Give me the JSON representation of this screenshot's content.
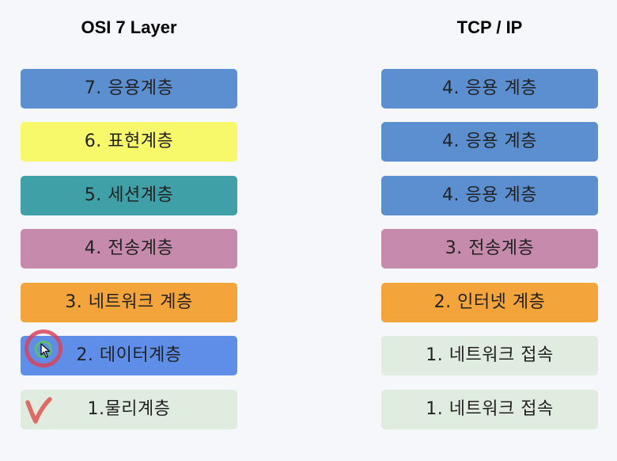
{
  "osi": {
    "title": "OSI 7 Layer",
    "layers": [
      {
        "label": "7. 응용계층",
        "color": "#5b8fd0"
      },
      {
        "label": "6. 표현계층",
        "color": "#f7f96a"
      },
      {
        "label": "5. 세션계층",
        "color": "#3fa0a8"
      },
      {
        "label": "4. 전송계층",
        "color": "#c58aac"
      },
      {
        "label": "3. 네트워크 계층",
        "color": "#f3a43a"
      },
      {
        "label": "2. 데이터계층",
        "color": "#5e8ee8"
      },
      {
        "label": "1.물리계층",
        "color": "#e0ecdf"
      }
    ]
  },
  "tcpip": {
    "title": "TCP / IP",
    "layers": [
      {
        "label": "4. 응용 계층",
        "color": "#5b8fd0"
      },
      {
        "label": "4. 응용 계층",
        "color": "#5b8fd0"
      },
      {
        "label": "4. 응용 계층",
        "color": "#5b8fd0"
      },
      {
        "label": "3. 전송계층",
        "color": "#c58aac"
      },
      {
        "label": "2. 인터넷 계층",
        "color": "#f3a43a"
      },
      {
        "label": "1. 네트워크 접속",
        "color": "#e0ecdf"
      },
      {
        "label": "1. 네트워크 접속",
        "color": "#e0ecdf"
      }
    ]
  },
  "decorations": {
    "cursor_icon": "cursor-arrow-icon",
    "check_icon": "check-mark-icon",
    "cursor_ring_color": "#d9435a",
    "check_color": "#e06a64"
  }
}
